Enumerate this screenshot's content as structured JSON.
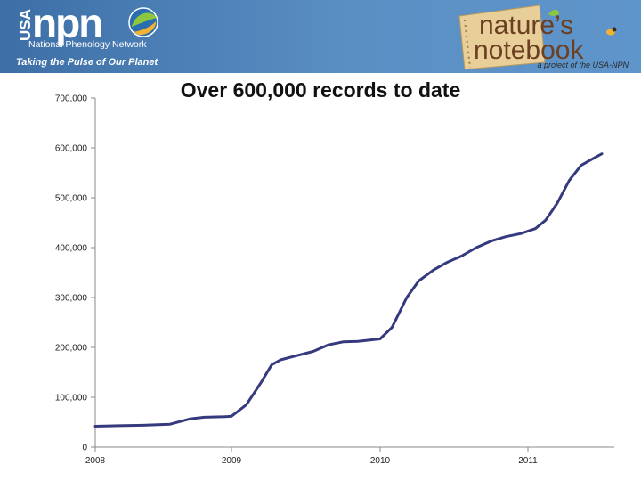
{
  "banner": {
    "usa_label": "USA",
    "npn_label": "npn",
    "network_name": "National Phenology Network",
    "tagline": "Taking the Pulse of Our Planet",
    "brand_line1": "nature’s",
    "brand_line2": "notebook",
    "project_note": "a project of the USA-NPN",
    "colors": {
      "banner_blue": "#4a7fb3",
      "banner_dark": "#2f5f92",
      "brand_brown": "#6b3f22",
      "notebook_tan": "#e8cf9a",
      "leaf_green": "#8dc63f",
      "globe_blue": "#2a6db0"
    }
  },
  "chart_data": {
    "type": "line",
    "title": "Over 600,000 records to date",
    "xlabel": "",
    "ylabel": "",
    "ylim": [
      0,
      700000
    ],
    "yticks": [
      0,
      100000,
      200000,
      300000,
      400000,
      500000,
      600000,
      700000
    ],
    "ytick_labels": [
      "0",
      "100,000",
      "200,000",
      "300,000",
      "400,000",
      "500,000",
      "600,000",
      "700,000"
    ],
    "xticks": [
      2008,
      2009,
      2010,
      2011
    ],
    "xtick_labels": [
      "2008",
      "2009",
      "2010",
      "2011"
    ],
    "xlim": [
      2008,
      2011.55
    ],
    "grid": false,
    "line_color": "#353a7e",
    "series": [
      {
        "x": [
          2008.0,
          2008.17,
          2008.35,
          2008.55,
          2008.7,
          2008.8,
          2008.95,
          2009.0,
          2009.1,
          2009.2,
          2009.27,
          2009.33,
          2009.42,
          2009.55,
          2009.65,
          2009.75,
          2009.85,
          2010.0,
          2010.08,
          2010.18,
          2010.26,
          2010.36,
          2010.45,
          2010.55,
          2010.65,
          2010.75,
          2010.85,
          2010.95,
          2011.05,
          2011.12,
          2011.2,
          2011.28,
          2011.36,
          2011.45,
          2011.5
        ],
        "y": [
          42000,
          43000,
          44000,
          46000,
          57000,
          60000,
          61000,
          62000,
          85000,
          130000,
          165000,
          175000,
          182000,
          192000,
          205000,
          211000,
          212000,
          217000,
          240000,
          300000,
          333000,
          355000,
          370000,
          383000,
          400000,
          413000,
          422000,
          428000,
          438000,
          455000,
          490000,
          535000,
          565000,
          580000,
          588000
        ]
      }
    ]
  }
}
